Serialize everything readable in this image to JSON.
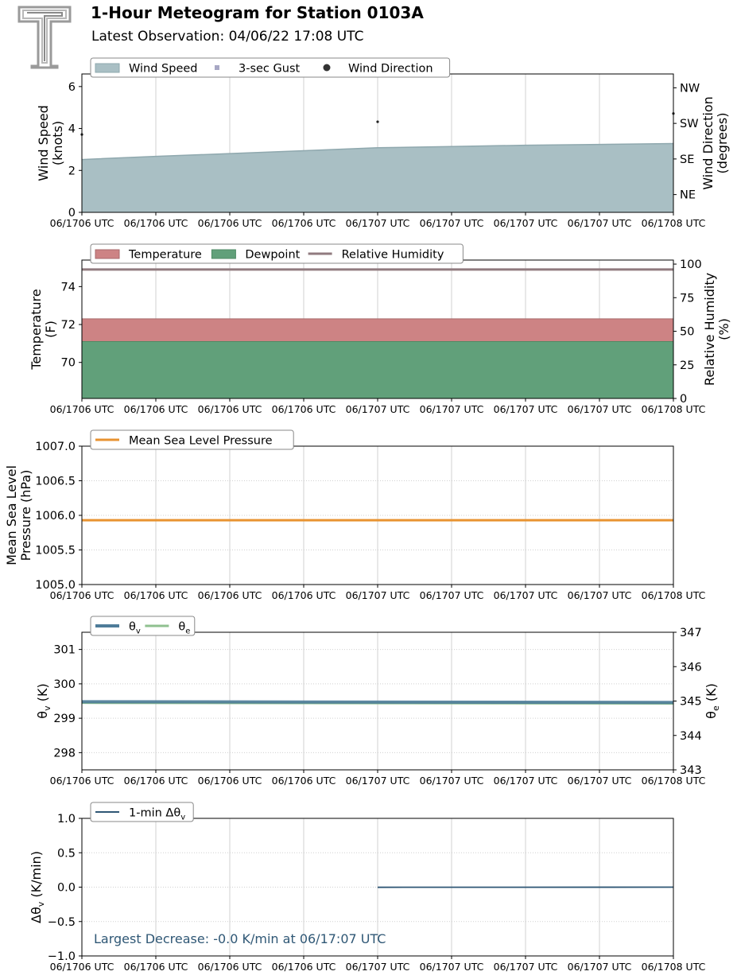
{
  "header": {
    "title": "1-Hour Meteogram for Station 0103A",
    "subtitle": "Latest Observation: 04/06/22 17:08 UTC"
  },
  "x_ticks": [
    "06/1706 UTC",
    "06/1706 UTC",
    "06/1706 UTC",
    "06/1706 UTC",
    "06/1707 UTC",
    "06/1707 UTC",
    "06/1707 UTC",
    "06/1707 UTC",
    "06/1708 UTC"
  ],
  "colors": {
    "wind_speed": "#a9bfc4",
    "wind_speed_line": "#8fa8ae",
    "gust": "#a7a7c4",
    "temperature": "#cd8384",
    "dewpoint": "#61a07a",
    "rh": "#917b7f",
    "pressure": "#e89331",
    "theta_v": "#4e7c99",
    "theta_e": "#8fc08f",
    "dtheta": "#2f5775",
    "annotation": "#2f5775"
  },
  "chart_data": [
    {
      "type": "area",
      "ylabel": "Wind Speed\n(knots)",
      "ylabel2": "Wind Direction\n(degrees)",
      "ylim": [
        0,
        6.6
      ],
      "yticks": [
        0,
        2,
        4,
        6
      ],
      "y2ticks": [
        "NE",
        "SE",
        "SW",
        "NW"
      ],
      "y2tick_values": [
        45,
        135,
        225,
        315
      ],
      "y2lim": [
        0,
        350
      ],
      "legend": [
        "Wind Speed",
        "3-sec Gust",
        "Wind Direction"
      ],
      "series": [
        {
          "name": "Wind Speed",
          "x": [
            0,
            1,
            2,
            3,
            4,
            5,
            6,
            7,
            8
          ],
          "values": [
            2.52,
            2.67,
            2.8,
            2.94,
            3.08,
            3.14,
            3.2,
            3.24,
            3.28
          ]
        },
        {
          "name": "Wind Direction",
          "x": [
            0,
            4,
            8
          ],
          "values": [
            197,
            229,
            250
          ]
        }
      ]
    },
    {
      "type": "area",
      "ylabel": "Temperature\n(F)",
      "ylabel2": "Relative Humidity\n(%)",
      "ylim": [
        68.1,
        75.4
      ],
      "yticks": [
        70,
        72,
        74
      ],
      "y2lim": [
        0,
        103
      ],
      "y2ticks": [
        0,
        25,
        50,
        75,
        100
      ],
      "legend": [
        "Temperature",
        "Dewpoint",
        "Relative Humidity"
      ],
      "series": [
        {
          "name": "Temperature",
          "x": [
            0,
            8
          ],
          "values": [
            72.3,
            72.3
          ]
        },
        {
          "name": "Dewpoint",
          "x": [
            0,
            8
          ],
          "values": [
            71.1,
            71.1
          ]
        },
        {
          "name": "Relative Humidity",
          "x": [
            0,
            8
          ],
          "values": [
            96,
            96
          ]
        }
      ]
    },
    {
      "type": "line",
      "ylabel": "Mean Sea Level\nPressure (hPa)",
      "ylim": [
        1005.0,
        1007.0
      ],
      "yticks": [
        "1005.0",
        "1005.5",
        "1006.0",
        "1006.5",
        "1007.0"
      ],
      "legend": [
        "Mean Sea Level Pressure"
      ],
      "series": [
        {
          "name": "Mean Sea Level Pressure",
          "x": [
            0,
            8
          ],
          "values": [
            1005.93,
            1005.93
          ]
        }
      ]
    },
    {
      "type": "line",
      "ylabel": "θv (K)",
      "ylabel2": "θe (K)",
      "ylim": [
        297.5,
        301.5
      ],
      "yticks": [
        298,
        299,
        300,
        301
      ],
      "y2lim": [
        343,
        347
      ],
      "y2ticks": [
        343,
        344,
        345,
        346,
        347
      ],
      "legend": [
        "θv",
        "θe"
      ],
      "series": [
        {
          "name": "θv",
          "x": [
            0,
            8
          ],
          "values": [
            299.48,
            299.46
          ]
        },
        {
          "name": "θe",
          "x": [
            0,
            8
          ],
          "values": [
            344.95,
            344.93
          ]
        }
      ]
    },
    {
      "type": "line",
      "ylabel": "Δθv (K/min)",
      "ylim": [
        -1.0,
        1.0
      ],
      "yticks": [
        "−1.0",
        "−0.5",
        "0.0",
        "0.5",
        "1.0"
      ],
      "legend": [
        "1-min Δθv"
      ],
      "annotation": "Largest Decrease: -0.0 K/min at 06/17:07 UTC",
      "series": [
        {
          "name": "1-min Δθv",
          "x": [
            4,
            8
          ],
          "values": [
            -0.002,
            0.0
          ]
        }
      ]
    }
  ]
}
